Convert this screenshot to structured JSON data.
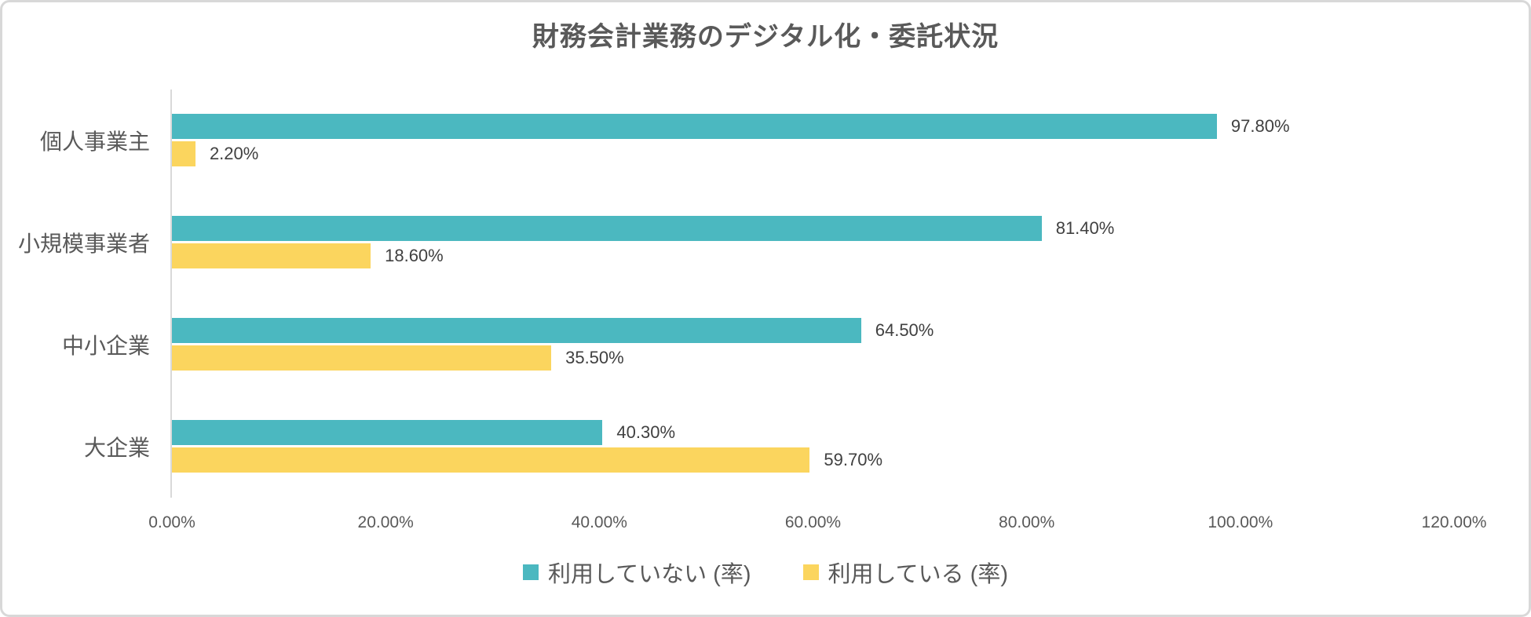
{
  "frame": {
    "background": "#ffffff",
    "border_color": "#d8d8d8"
  },
  "chart_data": {
    "type": "bar",
    "orientation": "horizontal",
    "title": "財務会計業務のデジタル化・委託状況",
    "categories": [
      "個人事業主",
      "小規模事業者",
      "中小企業",
      "大企業"
    ],
    "series": [
      {
        "name": "利用していない (率)",
        "color": "#4bb8c0",
        "values": [
          97.8,
          81.4,
          64.5,
          40.3
        ],
        "labels": [
          "97.80%",
          "81.40%",
          "64.50%",
          "40.30%"
        ]
      },
      {
        "name": "利用している (率)",
        "color": "#fbd55e",
        "values": [
          2.2,
          18.6,
          35.5,
          59.7
        ],
        "labels": [
          "2.20%",
          "18.60%",
          "35.50%",
          "59.70%"
        ]
      }
    ],
    "xlim": [
      0,
      120
    ],
    "x_ticks": [
      "0.00%",
      "20.00%",
      "40.00%",
      "60.00%",
      "80.00%",
      "100.00%",
      "120.00%"
    ],
    "grid": false,
    "legend_position": "bottom",
    "axis_line_color": "#d9d9d9",
    "value_label_color": "#404040",
    "text_color": "#595959"
  }
}
